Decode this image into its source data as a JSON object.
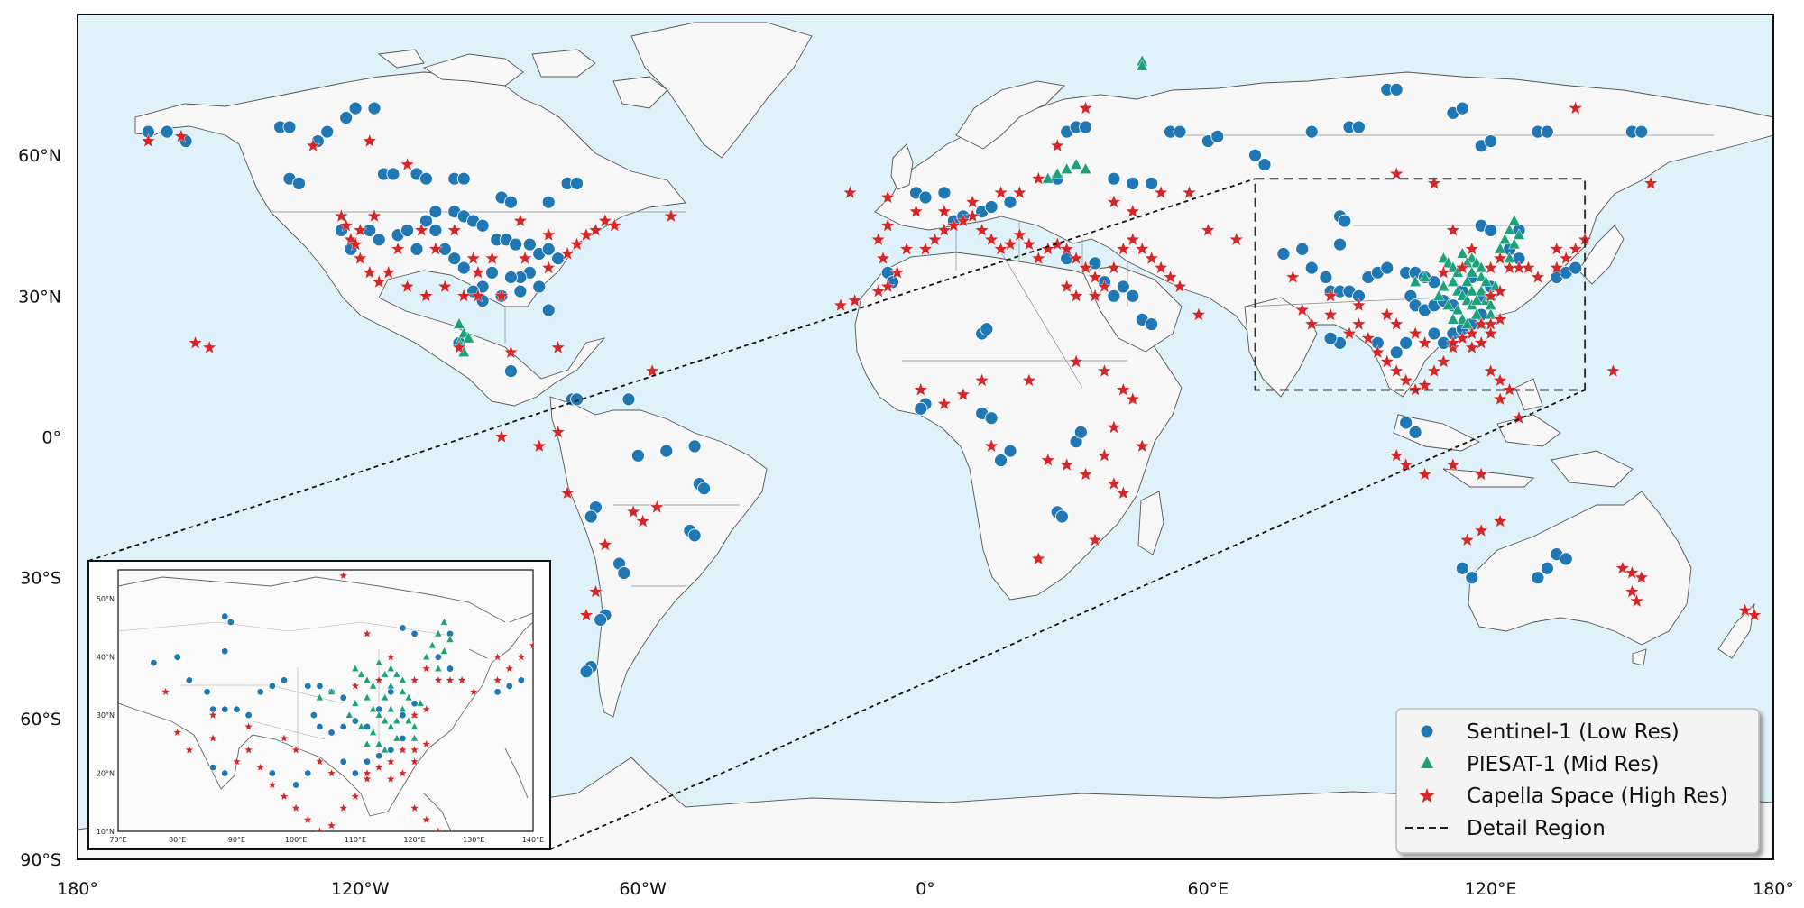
{
  "map": {
    "lon_range": [
      -180,
      180
    ],
    "lat_range": [
      -90,
      90
    ],
    "lat_ticks": [
      {
        "value": 60,
        "label": "60°N"
      },
      {
        "value": 30,
        "label": "30°N"
      },
      {
        "value": 0,
        "label": "0°"
      },
      {
        "value": -30,
        "label": "30°S"
      },
      {
        "value": -60,
        "label": "60°S"
      },
      {
        "value": -90,
        "label": "90°S"
      }
    ],
    "lon_ticks": [
      {
        "value": -180,
        "label": "180°"
      },
      {
        "value": -120,
        "label": "120°W"
      },
      {
        "value": -60,
        "label": "60°W"
      },
      {
        "value": 0,
        "label": "0°"
      },
      {
        "value": 60,
        "label": "60°E"
      },
      {
        "value": 120,
        "label": "120°E"
      },
      {
        "value": 180,
        "label": "180°"
      }
    ],
    "ocean_color": "#dff2f9",
    "land_color": "#f7f7f7",
    "detail_region": {
      "lon": [
        70,
        140
      ],
      "lat": [
        10,
        55
      ]
    }
  },
  "inset": {
    "lon_range": [
      70,
      140
    ],
    "lat_range": [
      10,
      55
    ],
    "lon_ticks": [
      {
        "value": 70,
        "label": "70°E"
      },
      {
        "value": 80,
        "label": "80°E"
      },
      {
        "value": 90,
        "label": "90°E"
      },
      {
        "value": 100,
        "label": "100°E"
      },
      {
        "value": 110,
        "label": "110°E"
      },
      {
        "value": 120,
        "label": "120°E"
      },
      {
        "value": 130,
        "label": "130°E"
      },
      {
        "value": 140,
        "label": "140°E"
      }
    ],
    "lat_ticks": [
      {
        "value": 10,
        "label": "10°N"
      },
      {
        "value": 20,
        "label": "20°N"
      },
      {
        "value": 30,
        "label": "30°N"
      },
      {
        "value": 40,
        "label": "40°N"
      },
      {
        "value": 50,
        "label": "50°N"
      }
    ]
  },
  "legend": {
    "sentinel": "Sentinel-1 (Low Res)",
    "piesat": "PIESAT-1 (Mid Res)",
    "capella": "Capella Space (High Res)",
    "detail": "Detail Region"
  },
  "colors": {
    "sentinel": "#1f77b4",
    "piesat": "#1aa37a",
    "capella": "#d62728"
  },
  "sentinel_points": [
    [
      -165,
      65
    ],
    [
      -161,
      65
    ],
    [
      -157,
      63
    ],
    [
      -137,
      66
    ],
    [
      -135,
      66
    ],
    [
      -129,
      63
    ],
    [
      -127,
      65
    ],
    [
      -123,
      68
    ],
    [
      -121,
      70
    ],
    [
      -117,
      70
    ],
    [
      -135,
      55
    ],
    [
      -133,
      54
    ],
    [
      -115,
      56
    ],
    [
      -113,
      56
    ],
    [
      -108,
      56
    ],
    [
      -106,
      55
    ],
    [
      -100,
      55
    ],
    [
      -98,
      55
    ],
    [
      -90,
      51
    ],
    [
      -88,
      50
    ],
    [
      -80,
      50
    ],
    [
      -76,
      54
    ],
    [
      -74,
      54
    ],
    [
      -124,
      44
    ],
    [
      -122,
      40
    ],
    [
      -118,
      44
    ],
    [
      -116,
      42
    ],
    [
      -112,
      43
    ],
    [
      -110,
      44
    ],
    [
      -106,
      46
    ],
    [
      -104,
      48
    ],
    [
      -100,
      48
    ],
    [
      -98,
      47
    ],
    [
      -96,
      46
    ],
    [
      -94,
      45
    ],
    [
      -91,
      42
    ],
    [
      -89,
      42
    ],
    [
      -87,
      41
    ],
    [
      -84,
      41
    ],
    [
      -82,
      39
    ],
    [
      -80,
      40
    ],
    [
      -78,
      38
    ],
    [
      -84,
      35
    ],
    [
      -86,
      34
    ],
    [
      -88,
      34
    ],
    [
      -92,
      35
    ],
    [
      -94,
      32
    ],
    [
      -96,
      31
    ],
    [
      -94,
      29
    ],
    [
      -90,
      30
    ],
    [
      -86,
      31
    ],
    [
      -82,
      32
    ],
    [
      -80,
      27
    ],
    [
      -98,
      36
    ],
    [
      -100,
      38
    ],
    [
      -102,
      40
    ],
    [
      -104,
      44
    ],
    [
      -108,
      40
    ],
    [
      -99,
      20
    ],
    [
      -88,
      14
    ],
    [
      -75,
      8
    ],
    [
      -74,
      8
    ],
    [
      -63,
      8
    ],
    [
      -61,
      -4
    ],
    [
      -55,
      -3
    ],
    [
      -49,
      -2
    ],
    [
      -48,
      -10
    ],
    [
      -47,
      -11
    ],
    [
      -50,
      -20
    ],
    [
      -49,
      -21
    ],
    [
      -70,
      -15
    ],
    [
      -71,
      -17
    ],
    [
      -65,
      -27
    ],
    [
      -64,
      -29
    ],
    [
      -68,
      -38
    ],
    [
      -69,
      -39
    ],
    [
      -71,
      -49
    ],
    [
      -72,
      -50
    ],
    [
      -2,
      52
    ],
    [
      0,
      51
    ],
    [
      4,
      52
    ],
    [
      6,
      46
    ],
    [
      8,
      47
    ],
    [
      12,
      48
    ],
    [
      14,
      49
    ],
    [
      18,
      50
    ],
    [
      28,
      55
    ],
    [
      30,
      65
    ],
    [
      32,
      66
    ],
    [
      34,
      66
    ],
    [
      40,
      55
    ],
    [
      44,
      54
    ],
    [
      48,
      54
    ],
    [
      52,
      65
    ],
    [
      54,
      65
    ],
    [
      60,
      63
    ],
    [
      62,
      64
    ],
    [
      70,
      60
    ],
    [
      72,
      58
    ],
    [
      82,
      65
    ],
    [
      90,
      66
    ],
    [
      92,
      66
    ],
    [
      98,
      74
    ],
    [
      100,
      74
    ],
    [
      112,
      69
    ],
    [
      114,
      70
    ],
    [
      118,
      62
    ],
    [
      120,
      63
    ],
    [
      130,
      65
    ],
    [
      132,
      65
    ],
    [
      150,
      65
    ],
    [
      152,
      65
    ],
    [
      -8,
      35
    ],
    [
      -7,
      33
    ],
    [
      12,
      22
    ],
    [
      13,
      23
    ],
    [
      0,
      7
    ],
    [
      -1,
      6
    ],
    [
      12,
      5
    ],
    [
      14,
      4
    ],
    [
      18,
      -3
    ],
    [
      16,
      -5
    ],
    [
      32,
      -1
    ],
    [
      33,
      1
    ],
    [
      28,
      -16
    ],
    [
      29,
      -17
    ],
    [
      42,
      32
    ],
    [
      44,
      30
    ],
    [
      46,
      25
    ],
    [
      48,
      24
    ],
    [
      30,
      38
    ],
    [
      36,
      37
    ],
    [
      38,
      33
    ],
    [
      40,
      30
    ],
    [
      76,
      39
    ],
    [
      80,
      40
    ],
    [
      82,
      36
    ],
    [
      85,
      34
    ],
    [
      88,
      47
    ],
    [
      89,
      46
    ],
    [
      88,
      41
    ],
    [
      86,
      31
    ],
    [
      88,
      31
    ],
    [
      90,
      31
    ],
    [
      92,
      30
    ],
    [
      94,
      34
    ],
    [
      96,
      35
    ],
    [
      98,
      36
    ],
    [
      102,
      35
    ],
    [
      104,
      35
    ],
    [
      106,
      34
    ],
    [
      108,
      33
    ],
    [
      103,
      30
    ],
    [
      104,
      28
    ],
    [
      106,
      27
    ],
    [
      108,
      28
    ],
    [
      110,
      29
    ],
    [
      112,
      28
    ],
    [
      114,
      31
    ],
    [
      116,
      34
    ],
    [
      118,
      30
    ],
    [
      120,
      32
    ],
    [
      112,
      22
    ],
    [
      114,
      23
    ],
    [
      116,
      24
    ],
    [
      118,
      26
    ],
    [
      110,
      20
    ],
    [
      108,
      22
    ],
    [
      100,
      18
    ],
    [
      102,
      20
    ],
    [
      96,
      20
    ],
    [
      88,
      20
    ],
    [
      86,
      21
    ],
    [
      118,
      45
    ],
    [
      120,
      44
    ],
    [
      124,
      40
    ],
    [
      126,
      38
    ],
    [
      134,
      34
    ],
    [
      136,
      35
    ],
    [
      138,
      36
    ],
    [
      126,
      44
    ],
    [
      102,
      3
    ],
    [
      104,
      1
    ],
    [
      114,
      -28
    ],
    [
      116,
      -30
    ],
    [
      130,
      -30
    ],
    [
      132,
      -28
    ],
    [
      134,
      -25
    ],
    [
      136,
      -26
    ]
  ],
  "piesat_points": [
    [
      46,
      80
    ],
    [
      46,
      79
    ],
    [
      26,
      55
    ],
    [
      28,
      56
    ],
    [
      30,
      57
    ],
    [
      32,
      58
    ],
    [
      34,
      57
    ],
    [
      -98,
      22
    ],
    [
      -99,
      20
    ],
    [
      -98,
      18
    ],
    [
      -97,
      21
    ],
    [
      -99,
      24
    ],
    [
      110,
      38
    ],
    [
      111,
      37
    ],
    [
      112,
      36
    ],
    [
      113,
      35
    ],
    [
      112,
      33
    ],
    [
      113,
      31
    ],
    [
      114,
      30
    ],
    [
      115,
      29
    ],
    [
      116,
      28
    ],
    [
      116,
      38
    ],
    [
      117,
      37
    ],
    [
      118,
      36
    ],
    [
      118,
      34
    ],
    [
      119,
      33
    ],
    [
      118,
      31
    ],
    [
      119,
      29
    ],
    [
      120,
      28
    ],
    [
      114,
      39
    ],
    [
      115,
      37
    ],
    [
      116,
      35
    ],
    [
      115,
      33
    ],
    [
      116,
      31
    ],
    [
      117,
      29
    ],
    [
      113,
      27
    ],
    [
      114,
      25
    ],
    [
      115,
      24
    ],
    [
      117,
      26
    ],
    [
      118,
      24
    ],
    [
      120,
      26
    ],
    [
      120,
      30
    ],
    [
      121,
      32
    ],
    [
      122,
      40
    ],
    [
      123,
      42
    ],
    [
      124,
      44
    ],
    [
      125,
      46
    ],
    [
      126,
      43
    ],
    [
      125,
      41
    ],
    [
      124,
      38
    ],
    [
      110,
      32
    ],
    [
      109,
      30
    ],
    [
      111,
      28
    ],
    [
      112,
      25
    ],
    [
      106,
      34
    ],
    [
      104,
      33
    ]
  ],
  "capella_points": [
    [
      -165,
      63
    ],
    [
      -158,
      64
    ],
    [
      -130,
      62
    ],
    [
      -118,
      63
    ],
    [
      -110,
      58
    ],
    [
      -124,
      47
    ],
    [
      -123,
      45
    ],
    [
      -122,
      42
    ],
    [
      -120,
      38
    ],
    [
      -118,
      35
    ],
    [
      -116,
      33
    ],
    [
      -114,
      35
    ],
    [
      -110,
      32
    ],
    [
      -106,
      30
    ],
    [
      -102,
      32
    ],
    [
      -98,
      30
    ],
    [
      -95,
      30
    ],
    [
      -90,
      30
    ],
    [
      -112,
      40
    ],
    [
      -104,
      40
    ],
    [
      -96,
      38
    ],
    [
      -92,
      38
    ],
    [
      -85,
      38
    ],
    [
      -80,
      36
    ],
    [
      -76,
      39
    ],
    [
      -74,
      41
    ],
    [
      -72,
      43
    ],
    [
      -70,
      44
    ],
    [
      -68,
      46
    ],
    [
      -66,
      45
    ],
    [
      -54,
      47
    ],
    [
      -86,
      46
    ],
    [
      -80,
      43
    ],
    [
      -100,
      44
    ],
    [
      -121,
      41
    ],
    [
      -120,
      44
    ],
    [
      -117,
      47
    ],
    [
      -107,
      44
    ],
    [
      -95,
      35
    ],
    [
      -99,
      19
    ],
    [
      -88,
      18
    ],
    [
      -78,
      19
    ],
    [
      -155,
      20
    ],
    [
      -152,
      19
    ],
    [
      -58,
      14
    ],
    [
      -78,
      1
    ],
    [
      -76,
      -12
    ],
    [
      -62,
      -16
    ],
    [
      -60,
      -18
    ],
    [
      -57,
      -15
    ],
    [
      -68,
      -23
    ],
    [
      -70,
      -33
    ],
    [
      -72,
      -38
    ],
    [
      -90,
      0
    ],
    [
      -82,
      -2
    ],
    [
      -18,
      28
    ],
    [
      -15,
      29
    ],
    [
      -10,
      31
    ],
    [
      -8,
      32
    ],
    [
      -6,
      35
    ],
    [
      -9,
      38
    ],
    [
      -10,
      42
    ],
    [
      -8,
      45
    ],
    [
      -4,
      40
    ],
    [
      0,
      40
    ],
    [
      2,
      42
    ],
    [
      4,
      44
    ],
    [
      6,
      45
    ],
    [
      8,
      46
    ],
    [
      10,
      47
    ],
    [
      12,
      44
    ],
    [
      14,
      42
    ],
    [
      16,
      40
    ],
    [
      18,
      41
    ],
    [
      20,
      43
    ],
    [
      22,
      41
    ],
    [
      24,
      38
    ],
    [
      26,
      40
    ],
    [
      28,
      41
    ],
    [
      30,
      40
    ],
    [
      32,
      38
    ],
    [
      34,
      36
    ],
    [
      36,
      34
    ],
    [
      38,
      32
    ],
    [
      32,
      30
    ],
    [
      30,
      32
    ],
    [
      36,
      30
    ],
    [
      40,
      36
    ],
    [
      42,
      40
    ],
    [
      44,
      42
    ],
    [
      46,
      40
    ],
    [
      48,
      38
    ],
    [
      50,
      36
    ],
    [
      52,
      34
    ],
    [
      54,
      32
    ],
    [
      58,
      26
    ],
    [
      -16,
      52
    ],
    [
      -8,
      51
    ],
    [
      -2,
      48
    ],
    [
      4,
      48
    ],
    [
      10,
      50
    ],
    [
      16,
      52
    ],
    [
      20,
      52
    ],
    [
      24,
      55
    ],
    [
      28,
      62
    ],
    [
      34,
      70
    ],
    [
      40,
      50
    ],
    [
      44,
      48
    ],
    [
      50,
      52
    ],
    [
      56,
      52
    ],
    [
      60,
      44
    ],
    [
      66,
      42
    ],
    [
      14,
      -2
    ],
    [
      26,
      -5
    ],
    [
      30,
      -6
    ],
    [
      34,
      -8
    ],
    [
      38,
      -4
    ],
    [
      40,
      -10
    ],
    [
      42,
      -12
    ],
    [
      36,
      -22
    ],
    [
      24,
      -26
    ],
    [
      22,
      12
    ],
    [
      32,
      16
    ],
    [
      38,
      14
    ],
    [
      42,
      10
    ],
    [
      44,
      8
    ],
    [
      40,
      2
    ],
    [
      46,
      -2
    ],
    [
      12,
      12
    ],
    [
      8,
      9
    ],
    [
      4,
      7
    ],
    [
      -1,
      10
    ],
    [
      78,
      34
    ],
    [
      80,
      27
    ],
    [
      82,
      24
    ],
    [
      86,
      26
    ],
    [
      90,
      22
    ],
    [
      92,
      24
    ],
    [
      94,
      21
    ],
    [
      96,
      18
    ],
    [
      98,
      16
    ],
    [
      100,
      14
    ],
    [
      102,
      12
    ],
    [
      104,
      10
    ],
    [
      106,
      11
    ],
    [
      108,
      14
    ],
    [
      110,
      16
    ],
    [
      112,
      19
    ],
    [
      114,
      21
    ],
    [
      116,
      22
    ],
    [
      118,
      24
    ],
    [
      120,
      24
    ],
    [
      122,
      25
    ],
    [
      120,
      22
    ],
    [
      118,
      20
    ],
    [
      116,
      19
    ],
    [
      112,
      20
    ],
    [
      120,
      14
    ],
    [
      122,
      12
    ],
    [
      124,
      10
    ],
    [
      122,
      8
    ],
    [
      126,
      4
    ],
    [
      98,
      26
    ],
    [
      100,
      24
    ],
    [
      104,
      22
    ],
    [
      106,
      20
    ],
    [
      120,
      36
    ],
    [
      122,
      38
    ],
    [
      124,
      36
    ],
    [
      126,
      36
    ],
    [
      128,
      36
    ],
    [
      130,
      34
    ],
    [
      134,
      36
    ],
    [
      136,
      38
    ],
    [
      138,
      40
    ],
    [
      140,
      42
    ],
    [
      134,
      40
    ],
    [
      116,
      40
    ],
    [
      100,
      56
    ],
    [
      112,
      44
    ],
    [
      108,
      54
    ],
    [
      138,
      70
    ],
    [
      154,
      54
    ],
    [
      146,
      14
    ],
    [
      120,
      30
    ],
    [
      122,
      31
    ],
    [
      110,
      35
    ],
    [
      114,
      36
    ],
    [
      86,
      30
    ],
    [
      92,
      28
    ],
    [
      100,
      -4
    ],
    [
      102,
      -6
    ],
    [
      106,
      -8
    ],
    [
      112,
      -6
    ],
    [
      118,
      -8
    ],
    [
      122,
      -18
    ],
    [
      118,
      -20
    ],
    [
      115,
      -22
    ],
    [
      148,
      -28
    ],
    [
      150,
      -29
    ],
    [
      152,
      -30
    ],
    [
      150,
      -33
    ],
    [
      151,
      -35
    ],
    [
      174,
      -37
    ],
    [
      176,
      -38
    ]
  ]
}
